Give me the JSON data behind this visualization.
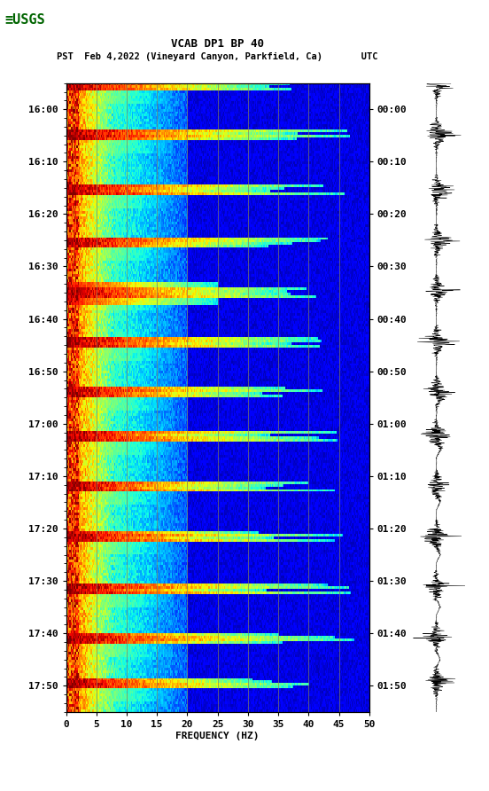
{
  "title_line1": "VCAB DP1 BP 40",
  "title_line2": "PST  Feb 4,2022 (Vineyard Canyon, Parkfield, Ca)       UTC",
  "xlabel": "FREQUENCY (HZ)",
  "freq_min": 0,
  "freq_max": 50,
  "freq_ticks": [
    0,
    5,
    10,
    15,
    20,
    25,
    30,
    35,
    40,
    45,
    50
  ],
  "left_time_labels": [
    "16:00",
    "16:10",
    "16:20",
    "16:30",
    "16:40",
    "16:50",
    "17:00",
    "17:10",
    "17:20",
    "17:30",
    "17:40",
    "17:50"
  ],
  "right_time_labels": [
    "00:00",
    "00:10",
    "00:20",
    "00:30",
    "00:40",
    "00:50",
    "01:00",
    "01:10",
    "01:20",
    "01:30",
    "01:40",
    "01:50"
  ],
  "bg_color": "#ffffff",
  "spectrogram_cmap": "jet",
  "vertical_lines_freq": [
    5,
    10,
    15,
    20,
    25,
    30,
    35,
    40,
    45
  ],
  "vertical_line_color": "#808060",
  "n_time_bins": 240,
  "n_freq_bins": 300,
  "font_size_title": 9,
  "font_size_labels": 8,
  "font_size_ticks": 8,
  "usgs_logo_color": "#006400",
  "seismogram_events": [
    0,
    0.08,
    0.17,
    0.25,
    0.33,
    0.41,
    0.49,
    0.56,
    0.64,
    0.72,
    0.8,
    0.88,
    0.95
  ],
  "seismogram_horiz_lines": [
    0.0,
    0.083,
    0.166,
    0.25,
    0.333,
    0.416,
    0.5,
    0.583,
    0.666,
    0.75,
    0.833,
    0.916
  ]
}
